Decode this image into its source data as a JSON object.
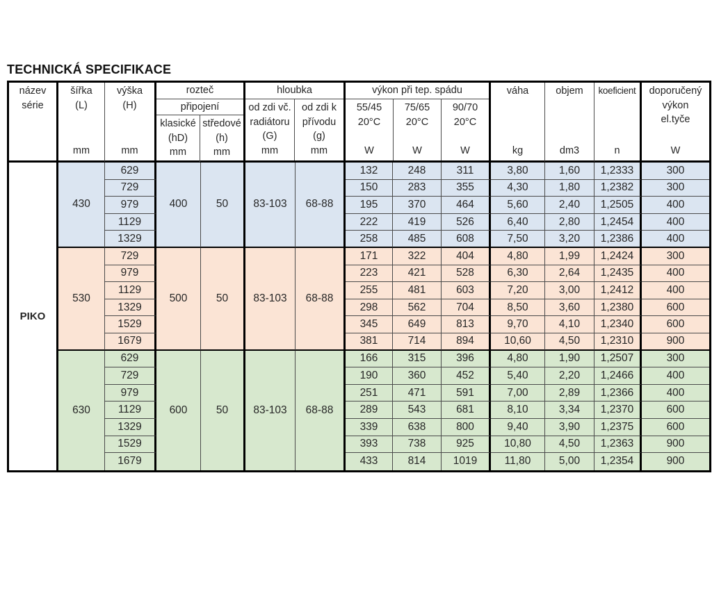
{
  "title": "TECHNICKÁ SPECIFIKACE",
  "colors": {
    "block_430": "#dbe5f1",
    "block_530": "#fbe4d5",
    "block_630": "#d7e8ce",
    "border_thick": "#000000",
    "border_thin": "#4a4a4a",
    "text": "#262626"
  },
  "header": {
    "serie": {
      "label": "název\nsérie"
    },
    "sirka": {
      "label": "šířka\n(L)",
      "unit": "mm"
    },
    "vyska": {
      "label": "výška\n(H)",
      "unit": "mm"
    },
    "roztec": {
      "title": "rozteč",
      "subtitle": "připojení",
      "cols": [
        {
          "label": "klasické\n(hD)",
          "unit": "mm"
        },
        {
          "label": "středové\n(h)",
          "unit": "mm"
        }
      ]
    },
    "hloubka": {
      "title": "hloubka",
      "cols": [
        {
          "label": "od zdi vč.\nradiátoru\n(G)",
          "unit": "mm"
        },
        {
          "label": "od zdi k\npřívodu\n(g)",
          "unit": "mm"
        }
      ]
    },
    "vykon": {
      "title": "výkon při tep. spádu",
      "cols": [
        {
          "label": "55/45\n20°C",
          "unit": "W"
        },
        {
          "label": "75/65\n20°C",
          "unit": "W"
        },
        {
          "label": "90/70\n20°C",
          "unit": "W"
        }
      ]
    },
    "vaha": {
      "label": "váha",
      "unit": "kg"
    },
    "objem": {
      "label": "objem",
      "unit": "dm3"
    },
    "koeficient": {
      "label": "koeficient",
      "unit": "n"
    },
    "doporuceny": {
      "label": "doporučený\nvýkon\nel.tyče",
      "unit": "W"
    }
  },
  "series": {
    "name": "PIKO",
    "blocks": [
      {
        "color_key": "block_430",
        "sirka": "430",
        "klasicke": "400",
        "stredove": "50",
        "g_range": "83-103",
        "gg_range": "68-88",
        "rows": [
          [
            "629",
            "132",
            "248",
            "311",
            "3,80",
            "1,60",
            "1,2333",
            "300"
          ],
          [
            "729",
            "150",
            "283",
            "355",
            "4,30",
            "1,80",
            "1,2382",
            "300"
          ],
          [
            "979",
            "195",
            "370",
            "464",
            "5,60",
            "2,40",
            "1,2505",
            "400"
          ],
          [
            "1129",
            "222",
            "419",
            "526",
            "6,40",
            "2,80",
            "1,2454",
            "400"
          ],
          [
            "1329",
            "258",
            "485",
            "608",
            "7,50",
            "3,20",
            "1,2386",
            "400"
          ]
        ]
      },
      {
        "color_key": "block_530",
        "sirka": "530",
        "klasicke": "500",
        "stredove": "50",
        "g_range": "83-103",
        "gg_range": "68-88",
        "rows": [
          [
            "729",
            "171",
            "322",
            "404",
            "4,80",
            "1,99",
            "1,2424",
            "300"
          ],
          [
            "979",
            "223",
            "421",
            "528",
            "6,30",
            "2,64",
            "1,2435",
            "400"
          ],
          [
            "1129",
            "255",
            "481",
            "603",
            "7,20",
            "3,00",
            "1,2412",
            "400"
          ],
          [
            "1329",
            "298",
            "562",
            "704",
            "8,50",
            "3,60",
            "1,2380",
            "600"
          ],
          [
            "1529",
            "345",
            "649",
            "813",
            "9,70",
            "4,10",
            "1,2340",
            "600"
          ],
          [
            "1679",
            "381",
            "714",
            "894",
            "10,60",
            "4,50",
            "1,2310",
            "900"
          ]
        ]
      },
      {
        "color_key": "block_630",
        "sirka": "630",
        "klasicke": "600",
        "stredove": "50",
        "g_range": "83-103",
        "gg_range": "68-88",
        "rows": [
          [
            "629",
            "166",
            "315",
            "396",
            "4,80",
            "1,90",
            "1,2507",
            "300"
          ],
          [
            "729",
            "190",
            "360",
            "452",
            "5,40",
            "2,20",
            "1,2466",
            "400"
          ],
          [
            "979",
            "251",
            "471",
            "591",
            "7,00",
            "2,89",
            "1,2366",
            "400"
          ],
          [
            "1129",
            "289",
            "543",
            "681",
            "8,10",
            "3,34",
            "1,2370",
            "600"
          ],
          [
            "1329",
            "339",
            "638",
            "800",
            "9,40",
            "3,90",
            "1,2375",
            "600"
          ],
          [
            "1529",
            "393",
            "738",
            "925",
            "10,80",
            "4,50",
            "1,2363",
            "900"
          ],
          [
            "1679",
            "433",
            "814",
            "1019",
            "11,80",
            "5,00",
            "1,2354",
            "900"
          ]
        ]
      }
    ]
  }
}
